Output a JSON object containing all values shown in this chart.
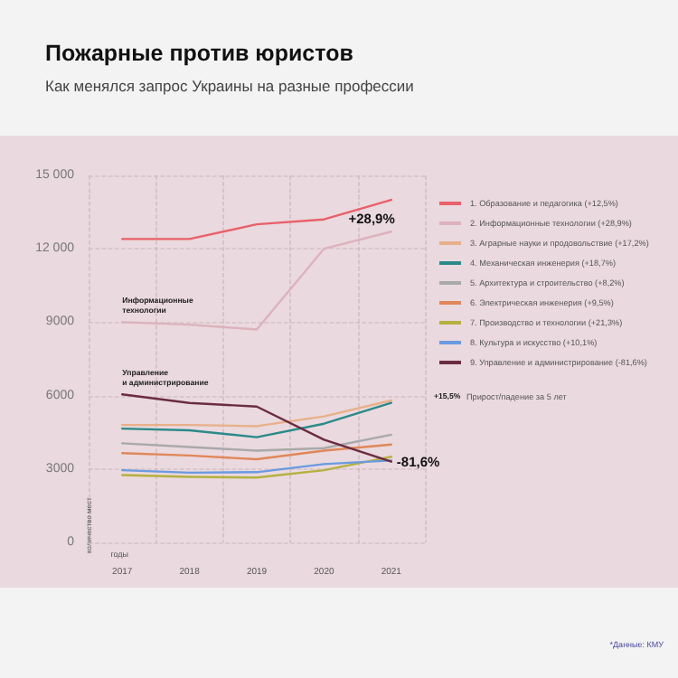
{
  "chart_data": {
    "type": "line",
    "title": "Пожарные против юристов",
    "subtitle": "Как менялся запрос Украины на разные профессии",
    "xlabel": "годы",
    "ylabel": "количество мест",
    "categories": [
      "2017",
      "2018",
      "2019",
      "2020",
      "2021"
    ],
    "series": [
      {
        "name": "1. Образование и педагогика (+12,5%)",
        "color": "#e8606a",
        "values": [
          12400,
          12400,
          13000,
          13200,
          14000
        ]
      },
      {
        "name": "2. Информационные технологии (+28,9%)",
        "color": "#dcb2bd",
        "values": [
          9000,
          8900,
          8700,
          12000,
          12700
        ]
      },
      {
        "name": "3. Аграрные науки и продовольствие (+17,2%)",
        "color": "#e8b08a",
        "values": [
          4800,
          4800,
          4750,
          5150,
          5800
        ]
      },
      {
        "name": "4. Механическая инженерия (+18,7%)",
        "color": "#2a8a8a",
        "values": [
          4650,
          4580,
          4300,
          4850,
          5700
        ]
      },
      {
        "name": "5. Архитектура и строительство (+8,2%)",
        "color": "#a9a9a9",
        "values": [
          4050,
          3900,
          3750,
          3850,
          4400
        ]
      },
      {
        "name": "6. Электрическая инженерия (+9,5%)",
        "color": "#e0875a",
        "values": [
          3650,
          3550,
          3400,
          3750,
          4000
        ]
      },
      {
        "name": "7. Производство и технологии (+21,3%)",
        "color": "#b5b040",
        "values": [
          2750,
          2680,
          2650,
          2950,
          3500
        ]
      },
      {
        "name": "8. Культура и искусство (+10,1%)",
        "color": "#6a9ae0",
        "values": [
          2950,
          2850,
          2870,
          3200,
          3350
        ]
      },
      {
        "name": "9. Управление и администрирование (-81,6%)",
        "color": "#6b2c40",
        "values": [
          6050,
          5700,
          5550,
          4200,
          3300
        ]
      }
    ],
    "ylim": [
      0,
      15000
    ],
    "yticks": [
      0,
      3000,
      6000,
      9000,
      {
        "value": 12000,
        "label": "12 000"
      },
      {
        "value": 15000,
        "label": "15 000"
      }
    ],
    "grid": true,
    "legend": "right",
    "annotations": [
      {
        "text": "Информационные технологии",
        "x": "2017",
        "y": 9000
      },
      {
        "text": "Управление и администрирование",
        "x": "2017",
        "y": 6050
      },
      {
        "text": "+28,9%",
        "x": "2021",
        "y": 12700
      },
      {
        "text": "-81,6%",
        "x": "2021",
        "y": 3300
      },
      "+15,5% Прирост/падение за 5 лет",
      "*Данные: КМУ"
    ]
  }
}
